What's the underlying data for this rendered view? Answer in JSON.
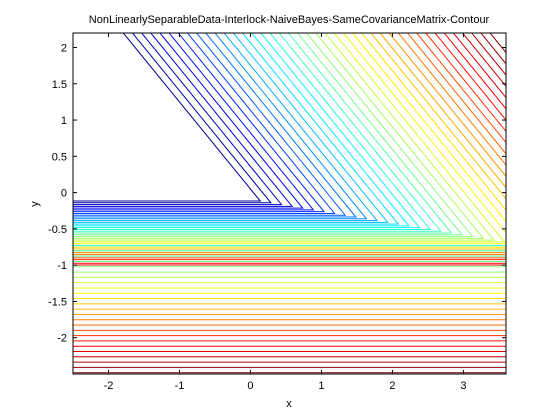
{
  "chart_data": {
    "type": "contour",
    "title": "NonLinearlySeparableData-Interlock-NaiveBayes-SameCovarianceMatrix-Contour",
    "xlabel": "x",
    "ylabel": "y",
    "xlim": [
      -2.5,
      3.6
    ],
    "ylim": [
      -2.5,
      2.2
    ],
    "xticks": [
      -2,
      -1,
      0,
      1,
      2,
      3
    ],
    "yticks": [
      -2,
      -1.5,
      -1,
      -0.5,
      0,
      0.5,
      1,
      1.5,
      2
    ],
    "grid": false,
    "colormap": "jet",
    "contour_levels": 58,
    "ridge": {
      "description": "diagonal contours fold into horizontal contours along a ridge",
      "start": [
        -2.4,
        0.3
      ],
      "end": [
        3.4,
        -0.65
      ]
    },
    "horizontal_region": {
      "y_top": -0.65,
      "y_bottom": -2.5
    },
    "colors": {
      "low": "#00008f",
      "mid_low": "#00ffff",
      "mid": "#ffff00",
      "high": "#ff0000",
      "axes": "#000000",
      "background": "#ffffff"
    }
  }
}
